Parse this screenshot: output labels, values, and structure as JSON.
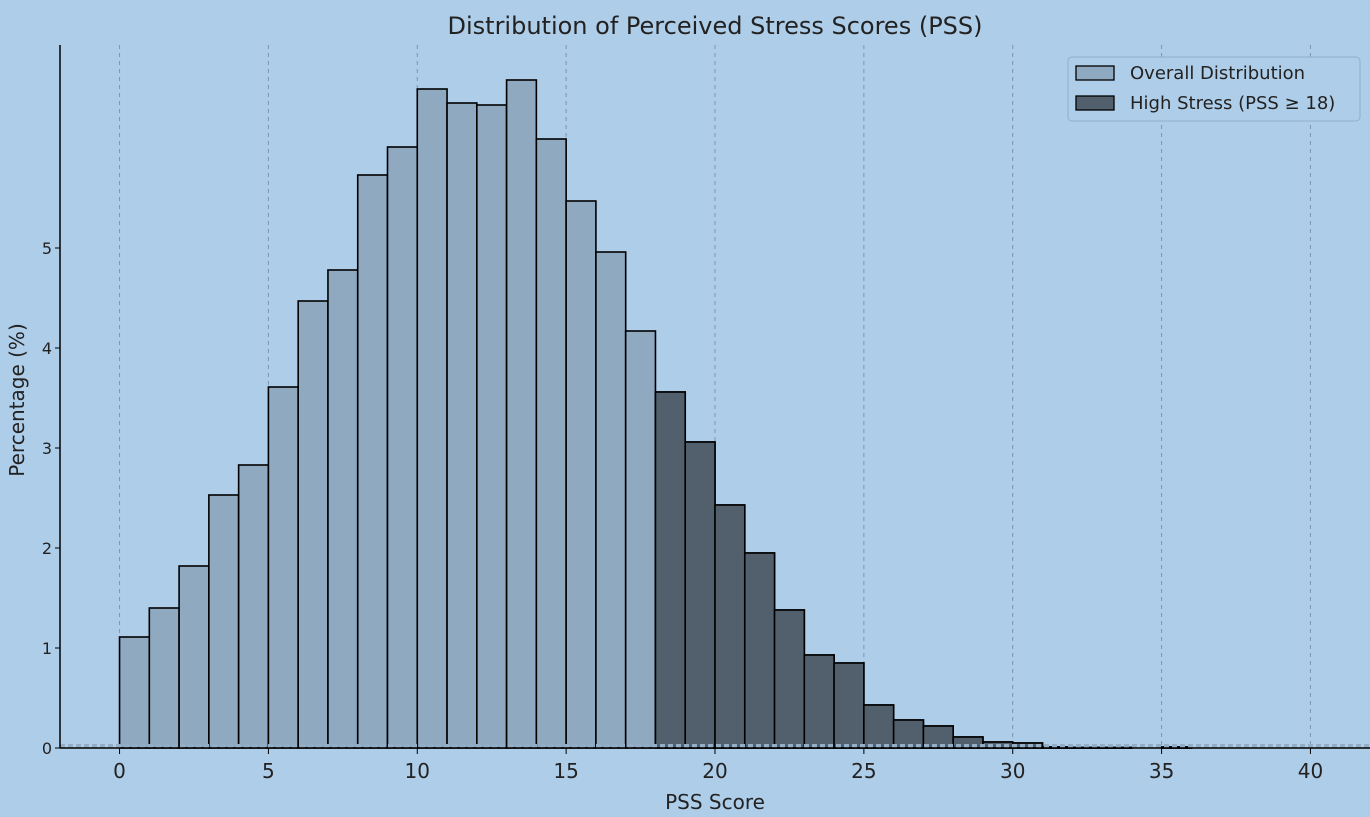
{
  "chart_data": {
    "type": "bar",
    "title": "Distribution of Perceived Stress Scores (PSS)",
    "xlabel": "PSS Score",
    "ylabel": "Percentage (%)",
    "xlim": [
      -2,
      42
    ],
    "ylim": [
      0,
      7.03
    ],
    "x_ticks": [
      "0",
      "5",
      "10",
      "15",
      "20",
      "25",
      "30",
      "35",
      "40"
    ],
    "y_ticks": [
      "0",
      "1",
      "2",
      "3",
      "4",
      "5"
    ],
    "grid": "vertical dashed",
    "legend_position": "top-right",
    "bin_width": 1,
    "series": [
      {
        "name": "Overall Distribution",
        "color": "#8fa9c1",
        "bin_starts": [
          0,
          1,
          2,
          3,
          4,
          5,
          6,
          7,
          8,
          9,
          10,
          11,
          12,
          13,
          14,
          15,
          16,
          17,
          18,
          19,
          20,
          21,
          22,
          23,
          24,
          25,
          26,
          27,
          28,
          29,
          30,
          31,
          32,
          33,
          35
        ],
        "values": [
          1.11,
          1.4,
          1.82,
          2.53,
          2.83,
          3.61,
          4.47,
          4.78,
          5.73,
          6.01,
          6.59,
          6.45,
          6.43,
          6.68,
          6.09,
          5.47,
          4.96,
          4.17,
          3.56,
          3.06,
          2.43,
          1.95,
          1.38,
          0.93,
          0.85,
          0.43,
          0.28,
          0.22,
          0.11,
          0.06,
          0.05,
          0.01,
          0.005,
          0.005,
          0.01
        ]
      },
      {
        "name": "High Stress (PSS ≥ 18)",
        "color": "#52606d",
        "bin_starts": [
          18,
          19,
          20,
          21,
          22,
          23,
          24,
          25,
          26,
          27,
          28,
          29,
          30,
          31,
          32,
          33,
          35
        ],
        "values": [
          3.56,
          3.06,
          2.43,
          1.95,
          1.38,
          0.93,
          0.85,
          0.43,
          0.28,
          0.22,
          0.11,
          0.06,
          0.05,
          0.01,
          0.005,
          0.005,
          0.01
        ]
      }
    ]
  }
}
